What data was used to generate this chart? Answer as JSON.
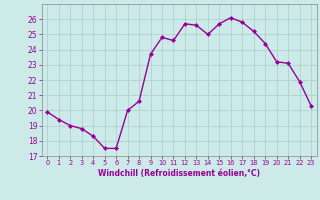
{
  "x": [
    0,
    1,
    2,
    3,
    4,
    5,
    6,
    7,
    8,
    9,
    10,
    11,
    12,
    13,
    14,
    15,
    16,
    17,
    18,
    19,
    20,
    21,
    22,
    23
  ],
  "y": [
    19.9,
    19.4,
    19.0,
    18.8,
    18.3,
    17.5,
    17.5,
    20.0,
    20.6,
    23.7,
    24.8,
    24.6,
    25.7,
    25.6,
    25.0,
    25.7,
    26.1,
    25.8,
    25.2,
    24.4,
    23.2,
    23.1,
    21.9,
    20.3
  ],
  "xlabel": "Windchill (Refroidissement éolien,°C)",
  "ylim": [
    17,
    27
  ],
  "yticks": [
    17,
    18,
    19,
    20,
    21,
    22,
    23,
    24,
    25,
    26
  ],
  "xlim": [
    -0.5,
    23.5
  ],
  "line_color": "#990099",
  "marker": "D",
  "marker_size": 2,
  "bg_color": "#cceae7",
  "grid_color": "#aacccc",
  "tick_color": "#990099",
  "xlabel_color": "#990099",
  "line_width": 1.0
}
